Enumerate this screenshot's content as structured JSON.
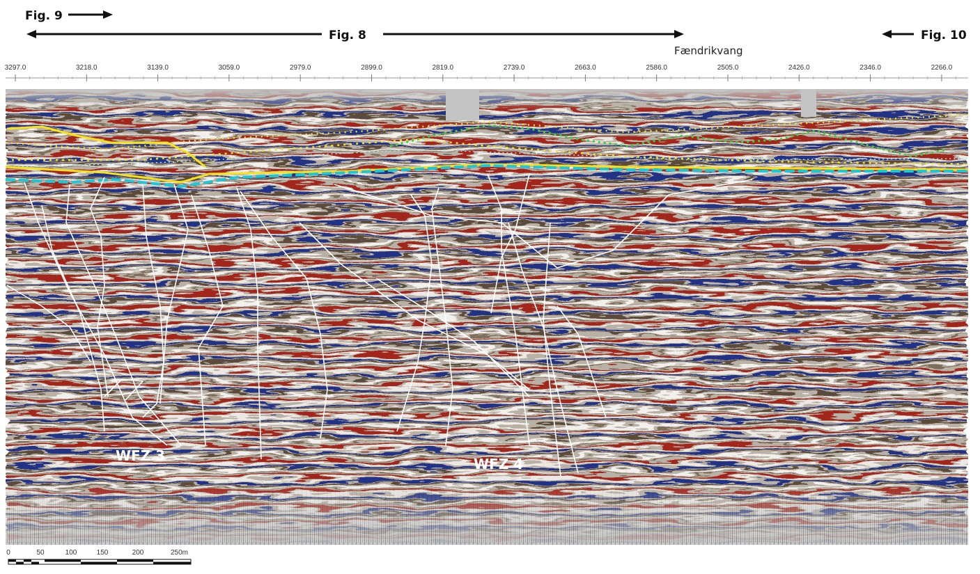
{
  "arrows": [
    {
      "label": "Fig. 9"
    },
    {
      "label": "Fig. 8"
    },
    {
      "label": "Fig. 10"
    }
  ],
  "place": "Fændrikvang",
  "shotpoints": [
    "3297.0",
    "3218.0",
    "3139.0",
    "3059.0",
    "2979.0",
    "2899.0",
    "2819.0",
    "2739.0",
    "2663.0",
    "2586.0",
    "2505.0",
    "2426.0",
    "2346.0",
    "2266.0"
  ],
  "zones": [
    "WFZ 3",
    "WFZ 4"
  ],
  "scale_bar": [
    "0",
    "50",
    "100",
    "150",
    "200",
    "250m"
  ]
}
